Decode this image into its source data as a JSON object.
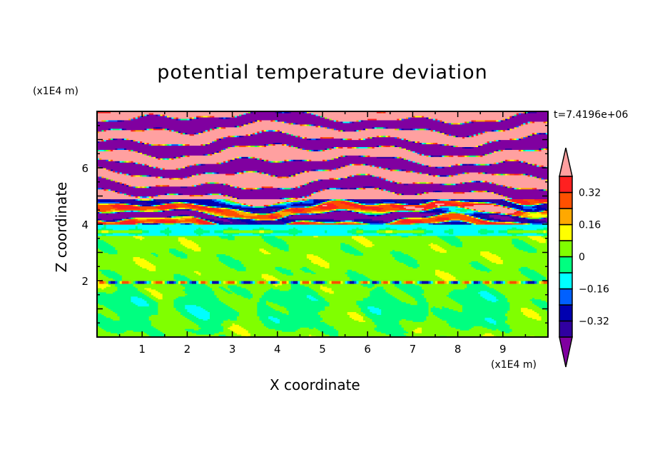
{
  "chart_data": {
    "type": "heatmap",
    "subtype": "filled-contour",
    "title": "potential temperature deviation",
    "xlabel": "X coordinate",
    "ylabel": "Z coordinate",
    "x_unit": "(x1E4 m)",
    "y_unit": "(x1E4 m)",
    "time_label": "t=7.4196e+06",
    "xlim": [
      0,
      10
    ],
    "ylim": [
      0,
      8
    ],
    "xticks": [
      "1",
      "2",
      "3",
      "4",
      "5",
      "6",
      "7",
      "8",
      "9"
    ],
    "xtick_values": [
      1,
      2,
      3,
      4,
      5,
      6,
      7,
      8,
      9
    ],
    "yticks": [
      "2",
      "4",
      "6"
    ],
    "ytick_values": [
      2,
      4,
      6
    ],
    "levels": [
      -0.4,
      -0.32,
      -0.24,
      -0.16,
      -0.08,
      0,
      0.08,
      0.16,
      0.24,
      0.32,
      0.4
    ],
    "colors": [
      "#8000a0",
      "#3000a0",
      "#0000b0",
      "#0060ff",
      "#00ffff",
      "#00ff80",
      "#80ff00",
      "#ffff00",
      "#ffa800",
      "#ff5000",
      "#ff2020",
      "#ffa0a0"
    ],
    "colorbar": {
      "labels": [
        "0.32",
        "0.16",
        "0",
        "-0.16",
        "-0.32"
      ],
      "label_values": [
        0.32,
        0.16,
        0,
        -0.16,
        -0.32
      ],
      "extend": "both"
    }
  }
}
